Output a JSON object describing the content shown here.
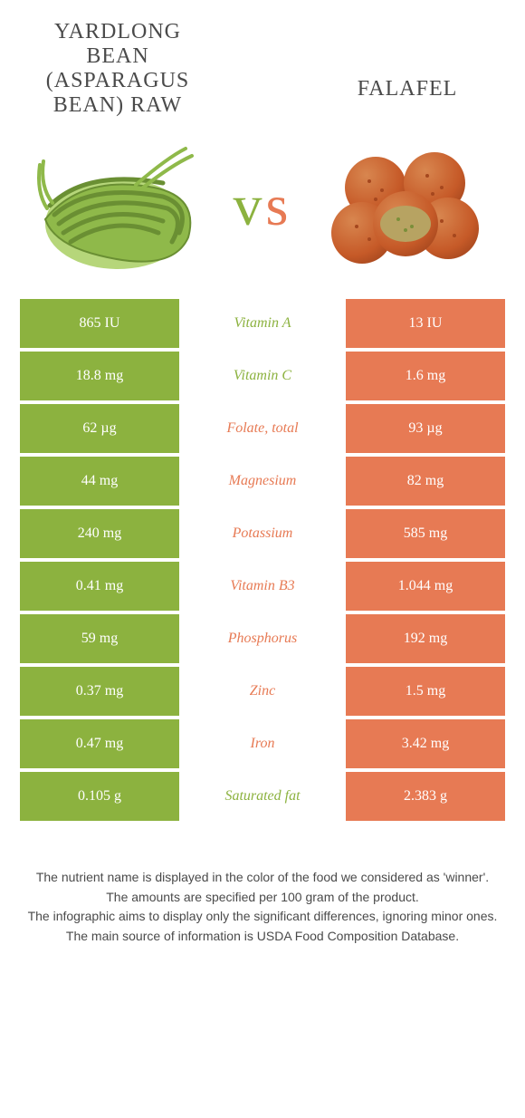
{
  "header": {
    "food_left_title": "Yardlong bean (Asparagus bean) raw",
    "food_right_title": "Falafel",
    "vs_v": "v",
    "vs_s": "s"
  },
  "colors": {
    "left": "#8cb23f",
    "right": "#e77a54",
    "background": "#ffffff",
    "text": "#4a4a4a"
  },
  "nutrients": [
    {
      "name": "Vitamin A",
      "left_value": "865 IU",
      "right_value": "13 IU",
      "winner": "left"
    },
    {
      "name": "Vitamin C",
      "left_value": "18.8 mg",
      "right_value": "1.6 mg",
      "winner": "left"
    },
    {
      "name": "Folate, total",
      "left_value": "62 µg",
      "right_value": "93 µg",
      "winner": "right"
    },
    {
      "name": "Magnesium",
      "left_value": "44 mg",
      "right_value": "82 mg",
      "winner": "right"
    },
    {
      "name": "Potassium",
      "left_value": "240 mg",
      "right_value": "585 mg",
      "winner": "right"
    },
    {
      "name": "Vitamin B3",
      "left_value": "0.41 mg",
      "right_value": "1.044 mg",
      "winner": "right"
    },
    {
      "name": "Phosphorus",
      "left_value": "59 mg",
      "right_value": "192 mg",
      "winner": "right"
    },
    {
      "name": "Zinc",
      "left_value": "0.37 mg",
      "right_value": "1.5 mg",
      "winner": "right"
    },
    {
      "name": "Iron",
      "left_value": "0.47 mg",
      "right_value": "3.42 mg",
      "winner": "right"
    },
    {
      "name": "Saturated fat",
      "left_value": "0.105 g",
      "right_value": "2.383 g",
      "winner": "left"
    }
  ],
  "footnotes": [
    "The nutrient name is displayed in the color of the food we considered as 'winner'.",
    "The amounts are specified per 100 gram of the product.",
    "The infographic aims to display only the significant differences, ignoring minor ones.",
    "The main source of information is USDA Food Composition Database."
  ],
  "image_left": {
    "kind": "yardlong-bean",
    "primary_color": "#8fb94a",
    "secondary_color": "#b6d67a",
    "shadow_color": "#6a8f33"
  },
  "image_right": {
    "kind": "falafel",
    "ball_count": 5,
    "primary_color": "#c65a28",
    "highlight_color": "#d8864f",
    "texture_color": "#a5471e",
    "inner_color": "#b7a362"
  }
}
